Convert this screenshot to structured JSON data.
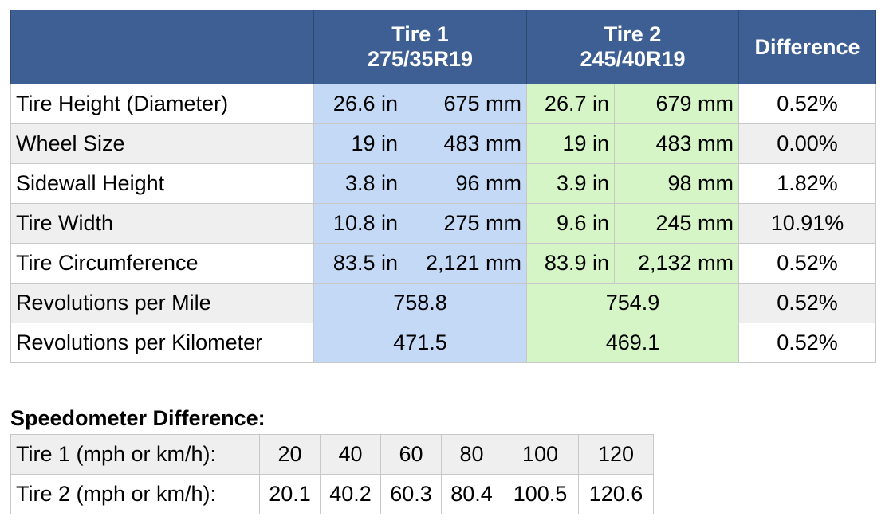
{
  "main_table": {
    "header": {
      "tire1": {
        "name": "Tire 1",
        "size": "275/35R19"
      },
      "tire2": {
        "name": "Tire 2",
        "size": "245/40R19"
      },
      "difference": "Difference"
    },
    "rows": [
      [
        "Tire Height (Diameter)",
        "26.6 in",
        "675 mm",
        "26.7 in",
        "679 mm",
        "0.52%"
      ],
      [
        "Wheel Size",
        "19 in",
        "483 mm",
        "19 in",
        "483 mm",
        "0.00%"
      ],
      [
        "Sidewall Height",
        "3.8 in",
        "96 mm",
        "3.9 in",
        "98 mm",
        "1.82%"
      ],
      [
        "Tire Width",
        "10.8 in",
        "275 mm",
        "9.6 in",
        "245 mm",
        "10.91%"
      ],
      [
        "Tire Circumference",
        "83.5 in",
        "2,121 mm",
        "83.9 in",
        "2,132 mm",
        "0.52%"
      ],
      [
        "Revolutions per Mile",
        "758.8",
        "754.9",
        "0.52%"
      ],
      [
        "Revolutions per Kilometer",
        "471.5",
        "469.1",
        "0.52%"
      ]
    ]
  },
  "speedometer": {
    "title": "Speedometer Difference:",
    "rows": [
      [
        "Tire 1 (mph or km/h):",
        "20",
        "40",
        "60",
        "80",
        "100",
        "120"
      ],
      [
        "Tire 2 (mph or km/h):",
        "20.1",
        "40.2",
        "60.3",
        "80.4",
        "100.5",
        "120.6"
      ]
    ]
  }
}
